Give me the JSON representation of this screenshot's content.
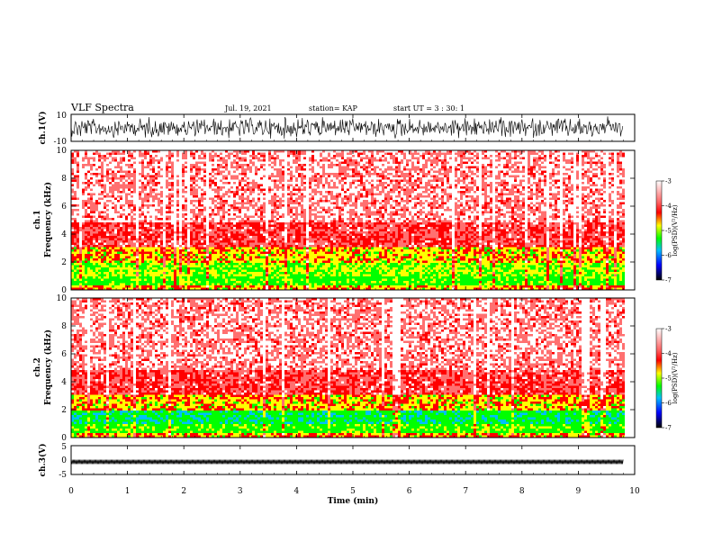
{
  "header": {
    "title": "VLF Spectra",
    "date": "Jul. 19, 2021",
    "station": "station= KAP",
    "start_ut": "start UT =  3 : 30: 1"
  },
  "chart_data": [
    {
      "id": "ch1-waveform",
      "type": "line",
      "ylabel": "ch.1(V)",
      "yticks": [
        "10",
        "-10"
      ],
      "ylim": [
        -10,
        10
      ],
      "xlim": [
        0,
        10
      ],
      "data_x_end": 9.8,
      "description_values": "noisy waveform, amplitude mostly between -8 and 8 V"
    },
    {
      "id": "ch1-spectrogram",
      "type": "heatmap",
      "ylabel": "ch.1\nFrequency (kHz)",
      "ylabel_lines": [
        "ch.1",
        "Frequency (kHz)"
      ],
      "yticks": [
        "0",
        "2",
        "4",
        "6",
        "8",
        "10"
      ],
      "ylim": [
        0,
        10
      ],
      "xlim": [
        0,
        10
      ],
      "data_x_end": 9.8,
      "colorbar": {
        "label": "log(PSD)(V²/Hz)",
        "ticks": [
          "-3",
          "-4",
          "-5",
          "-6",
          "-7"
        ],
        "range": [
          -7,
          -3
        ]
      }
    },
    {
      "id": "ch2-spectrogram",
      "type": "heatmap",
      "ylabel_lines": [
        "ch.2",
        "Frequency (kHz)"
      ],
      "yticks": [
        "0",
        "2",
        "4",
        "6",
        "8",
        "10"
      ],
      "ylim": [
        0,
        10
      ],
      "xlim": [
        0,
        10
      ],
      "data_x_end": 9.8,
      "colorbar": {
        "label": "log(PSD)(V²/Hz)",
        "ticks": [
          "-3",
          "-4",
          "-5",
          "-6",
          "-7"
        ],
        "range": [
          -7,
          -3
        ]
      }
    },
    {
      "id": "ch3-waveform",
      "type": "line",
      "ylabel": "ch.3(V)",
      "yticks": [
        "5",
        "0",
        "-5"
      ],
      "ylim": [
        -5,
        5
      ],
      "xlim": [
        0,
        10
      ],
      "data_x_end": 9.8,
      "description_values": "dense oscillation between about -0.5 and 0.5 V"
    }
  ],
  "xaxis": {
    "label": "Time (min)",
    "ticks": [
      "0",
      "1",
      "2",
      "3",
      "4",
      "5",
      "6",
      "7",
      "8",
      "9",
      "10"
    ]
  },
  "colors": {
    "waveform": "#000000",
    "spec_high": "#ff0000",
    "spec_mid": "#ffff00",
    "spec_low": "#00ff00",
    "spec_bg": "#ffffff"
  }
}
